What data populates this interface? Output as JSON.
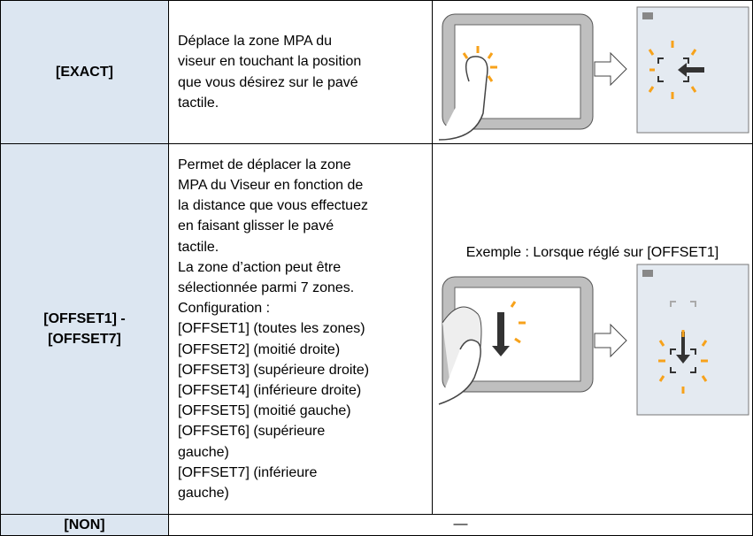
{
  "rows": [
    {
      "label": [
        "[EXACT]"
      ],
      "description": [
        "Déplace la zone MPA du",
        "viseur en touchant la position",
        "que vous désirez sur le pavé",
        "tactile."
      ]
    },
    {
      "label": [
        "[OFFSET1] -",
        "[OFFSET7]"
      ],
      "description": [
        "Permet de déplacer la zone",
        "MPA du Viseur en fonction de",
        "la distance que vous effectuez",
        "en faisant glisser le pavé",
        "tactile.",
        "La zone d’action peut être",
        "sélectionnée parmi 7 zones.",
        "Configuration :",
        "[OFFSET1] (toutes les zones)",
        "[OFFSET2] (moitié droite)",
        "[OFFSET3] (supérieure droite)",
        "[OFFSET4] (inférieure droite)",
        "[OFFSET5] (moitié gauche)",
        "[OFFSET6] (supérieure",
        "gauche)",
        "[OFFSET7] (inférieure",
        "gauche)"
      ],
      "example": "Exemple : Lorsque réglé sur [OFFSET1]"
    },
    {
      "label": [
        "[NON]"
      ],
      "value": "—"
    }
  ]
}
